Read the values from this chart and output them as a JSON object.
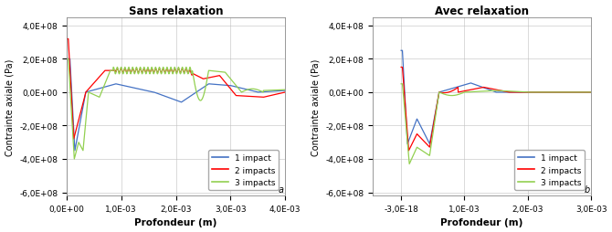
{
  "title_left": "Sans relaxation",
  "title_right": "Avec relaxation",
  "xlabel": "Profondeur (m)",
  "ylabel": "Contrainte axiale (Pa)",
  "label_a": "a",
  "label_b": "b",
  "legend_labels": [
    "1 impact",
    "2 impacts",
    "3 impacts"
  ],
  "colors": [
    "#4472C4",
    "#FF0000",
    "#92D050"
  ],
  "left_xlim": [
    0.0,
    0.004
  ],
  "left_ylim": [
    -620000000.0,
    450000000.0
  ],
  "right_xlim": [
    -0.00045,
    0.003
  ],
  "right_ylim": [
    -620000000.0,
    450000000.0
  ],
  "left_yticks": [
    -600000000.0,
    -400000000.0,
    -200000000.0,
    0.0,
    200000000.0,
    400000000.0
  ],
  "right_yticks": [
    -600000000.0,
    -400000000.0,
    -200000000.0,
    0.0,
    200000000.0,
    400000000.0
  ],
  "left_xticks": [
    0.0,
    0.001,
    0.002,
    0.003,
    0.004
  ],
  "right_xticks": [
    -3e-19,
    0.001,
    0.002,
    0.003
  ],
  "background_color": "#FFFFFF",
  "grid_color": "#C0C0C0"
}
